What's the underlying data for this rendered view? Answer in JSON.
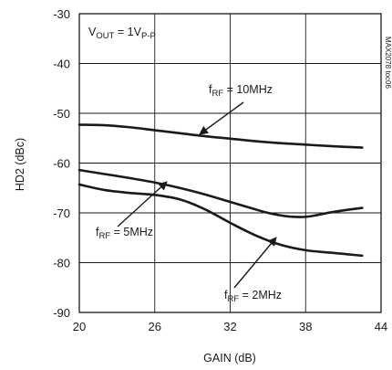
{
  "chart_data": {
    "type": "line",
    "title": "",
    "xlabel": "GAIN (dB)",
    "ylabel": "HD2 (dBc)",
    "xlim": [
      20,
      44
    ],
    "ylim": [
      -90,
      -30
    ],
    "x_ticks": [
      "20",
      "26",
      "32",
      "38",
      "44"
    ],
    "y_ticks": [
      "-30",
      "-40",
      "-50",
      "-60",
      "-70",
      "-80",
      "-90"
    ],
    "grid": true,
    "series": [
      {
        "name": "fRF = 10MHz",
        "x": [
          20,
          22,
          24,
          26,
          28,
          30,
          32,
          34,
          36,
          38,
          40,
          42.5
        ],
        "y": [
          -52.3,
          -52.4,
          -52.8,
          -53.4,
          -54.0,
          -54.6,
          -55.1,
          -55.6,
          -56.0,
          -56.3,
          -56.6,
          -56.9
        ]
      },
      {
        "name": "fRF = 5MHz",
        "x": [
          20,
          22,
          24,
          26,
          28,
          30,
          32,
          34,
          35,
          36,
          37,
          38,
          39,
          40,
          41,
          42.5
        ],
        "y": [
          -61.4,
          -62.2,
          -63.0,
          -63.9,
          -65.0,
          -66.3,
          -67.8,
          -69.3,
          -70.0,
          -70.5,
          -70.8,
          -70.8,
          -70.4,
          -69.9,
          -69.5,
          -69.0
        ]
      },
      {
        "name": "fRF = 2MHz",
        "x": [
          20,
          22,
          24,
          26,
          28,
          30,
          32,
          34,
          36,
          38,
          40,
          42.5
        ],
        "y": [
          -64.3,
          -65.4,
          -66.0,
          -66.4,
          -67.3,
          -69.3,
          -72.0,
          -74.5,
          -76.4,
          -77.5,
          -78.0,
          -78.6
        ]
      }
    ],
    "annotations": [
      {
        "main": "V",
        "sub": "OUT",
        "rest": " = 1V",
        "sub2": "P-P"
      },
      {
        "main": "f",
        "sub": "RF",
        "rest": " = 10MHz",
        "sub2": ""
      },
      {
        "main": "f",
        "sub": "RF",
        "rest": " = 5MHz",
        "sub2": ""
      },
      {
        "main": "f",
        "sub": "RF",
        "rest": " = 2MHz",
        "sub2": ""
      }
    ],
    "side_label": "MAX2078 toc06",
    "colors": {
      "line": "#1a1a1a",
      "grid": "#1a1a1a"
    }
  }
}
